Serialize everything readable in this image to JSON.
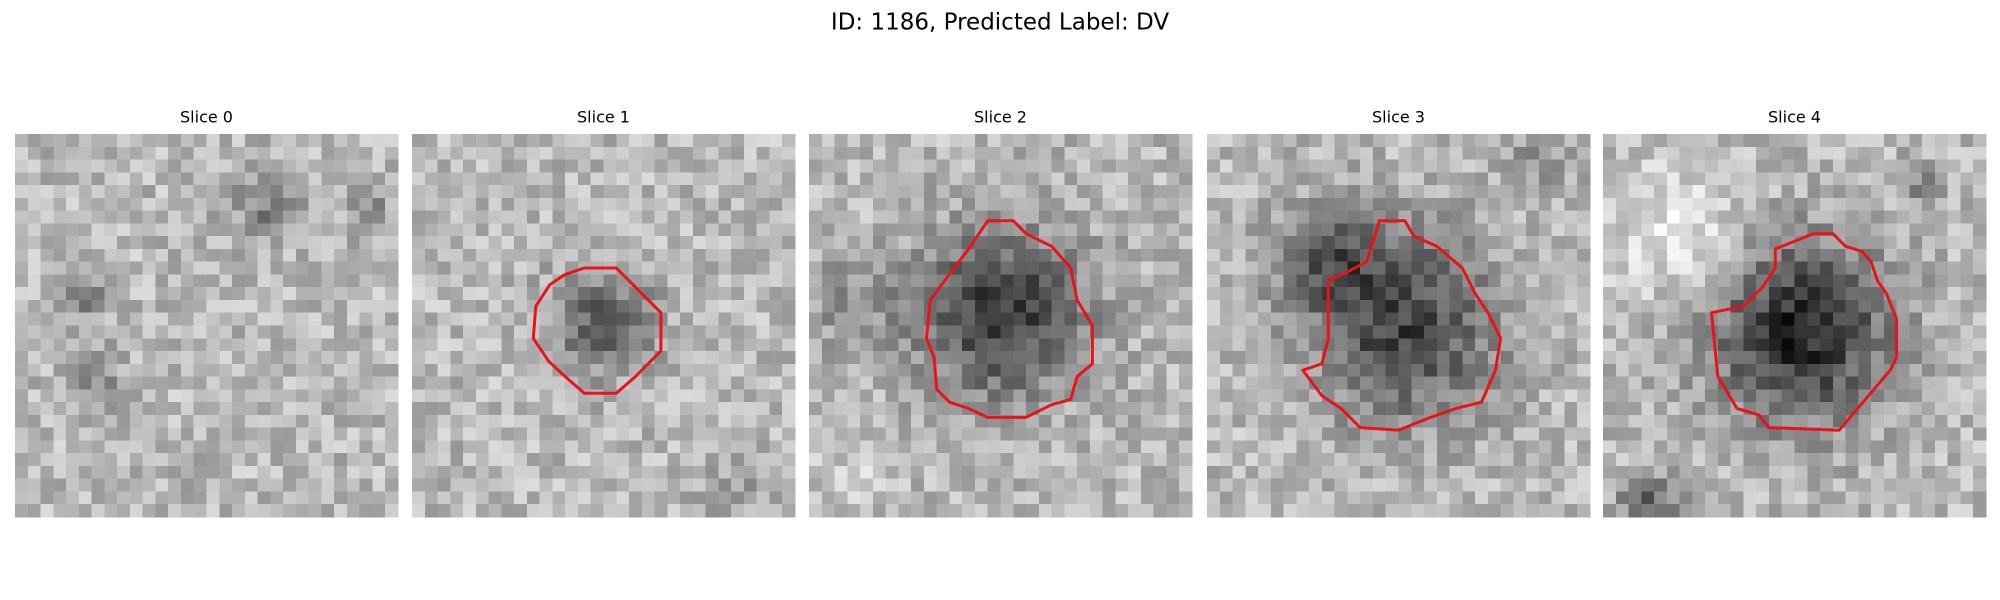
{
  "title": "ID: 1186, Predicted Label: DV",
  "panels": [
    {
      "title": "Slice 0"
    },
    {
      "title": "Slice 1"
    },
    {
      "title": "Slice 2"
    },
    {
      "title": "Slice 3"
    },
    {
      "title": "Slice 4"
    }
  ]
}
